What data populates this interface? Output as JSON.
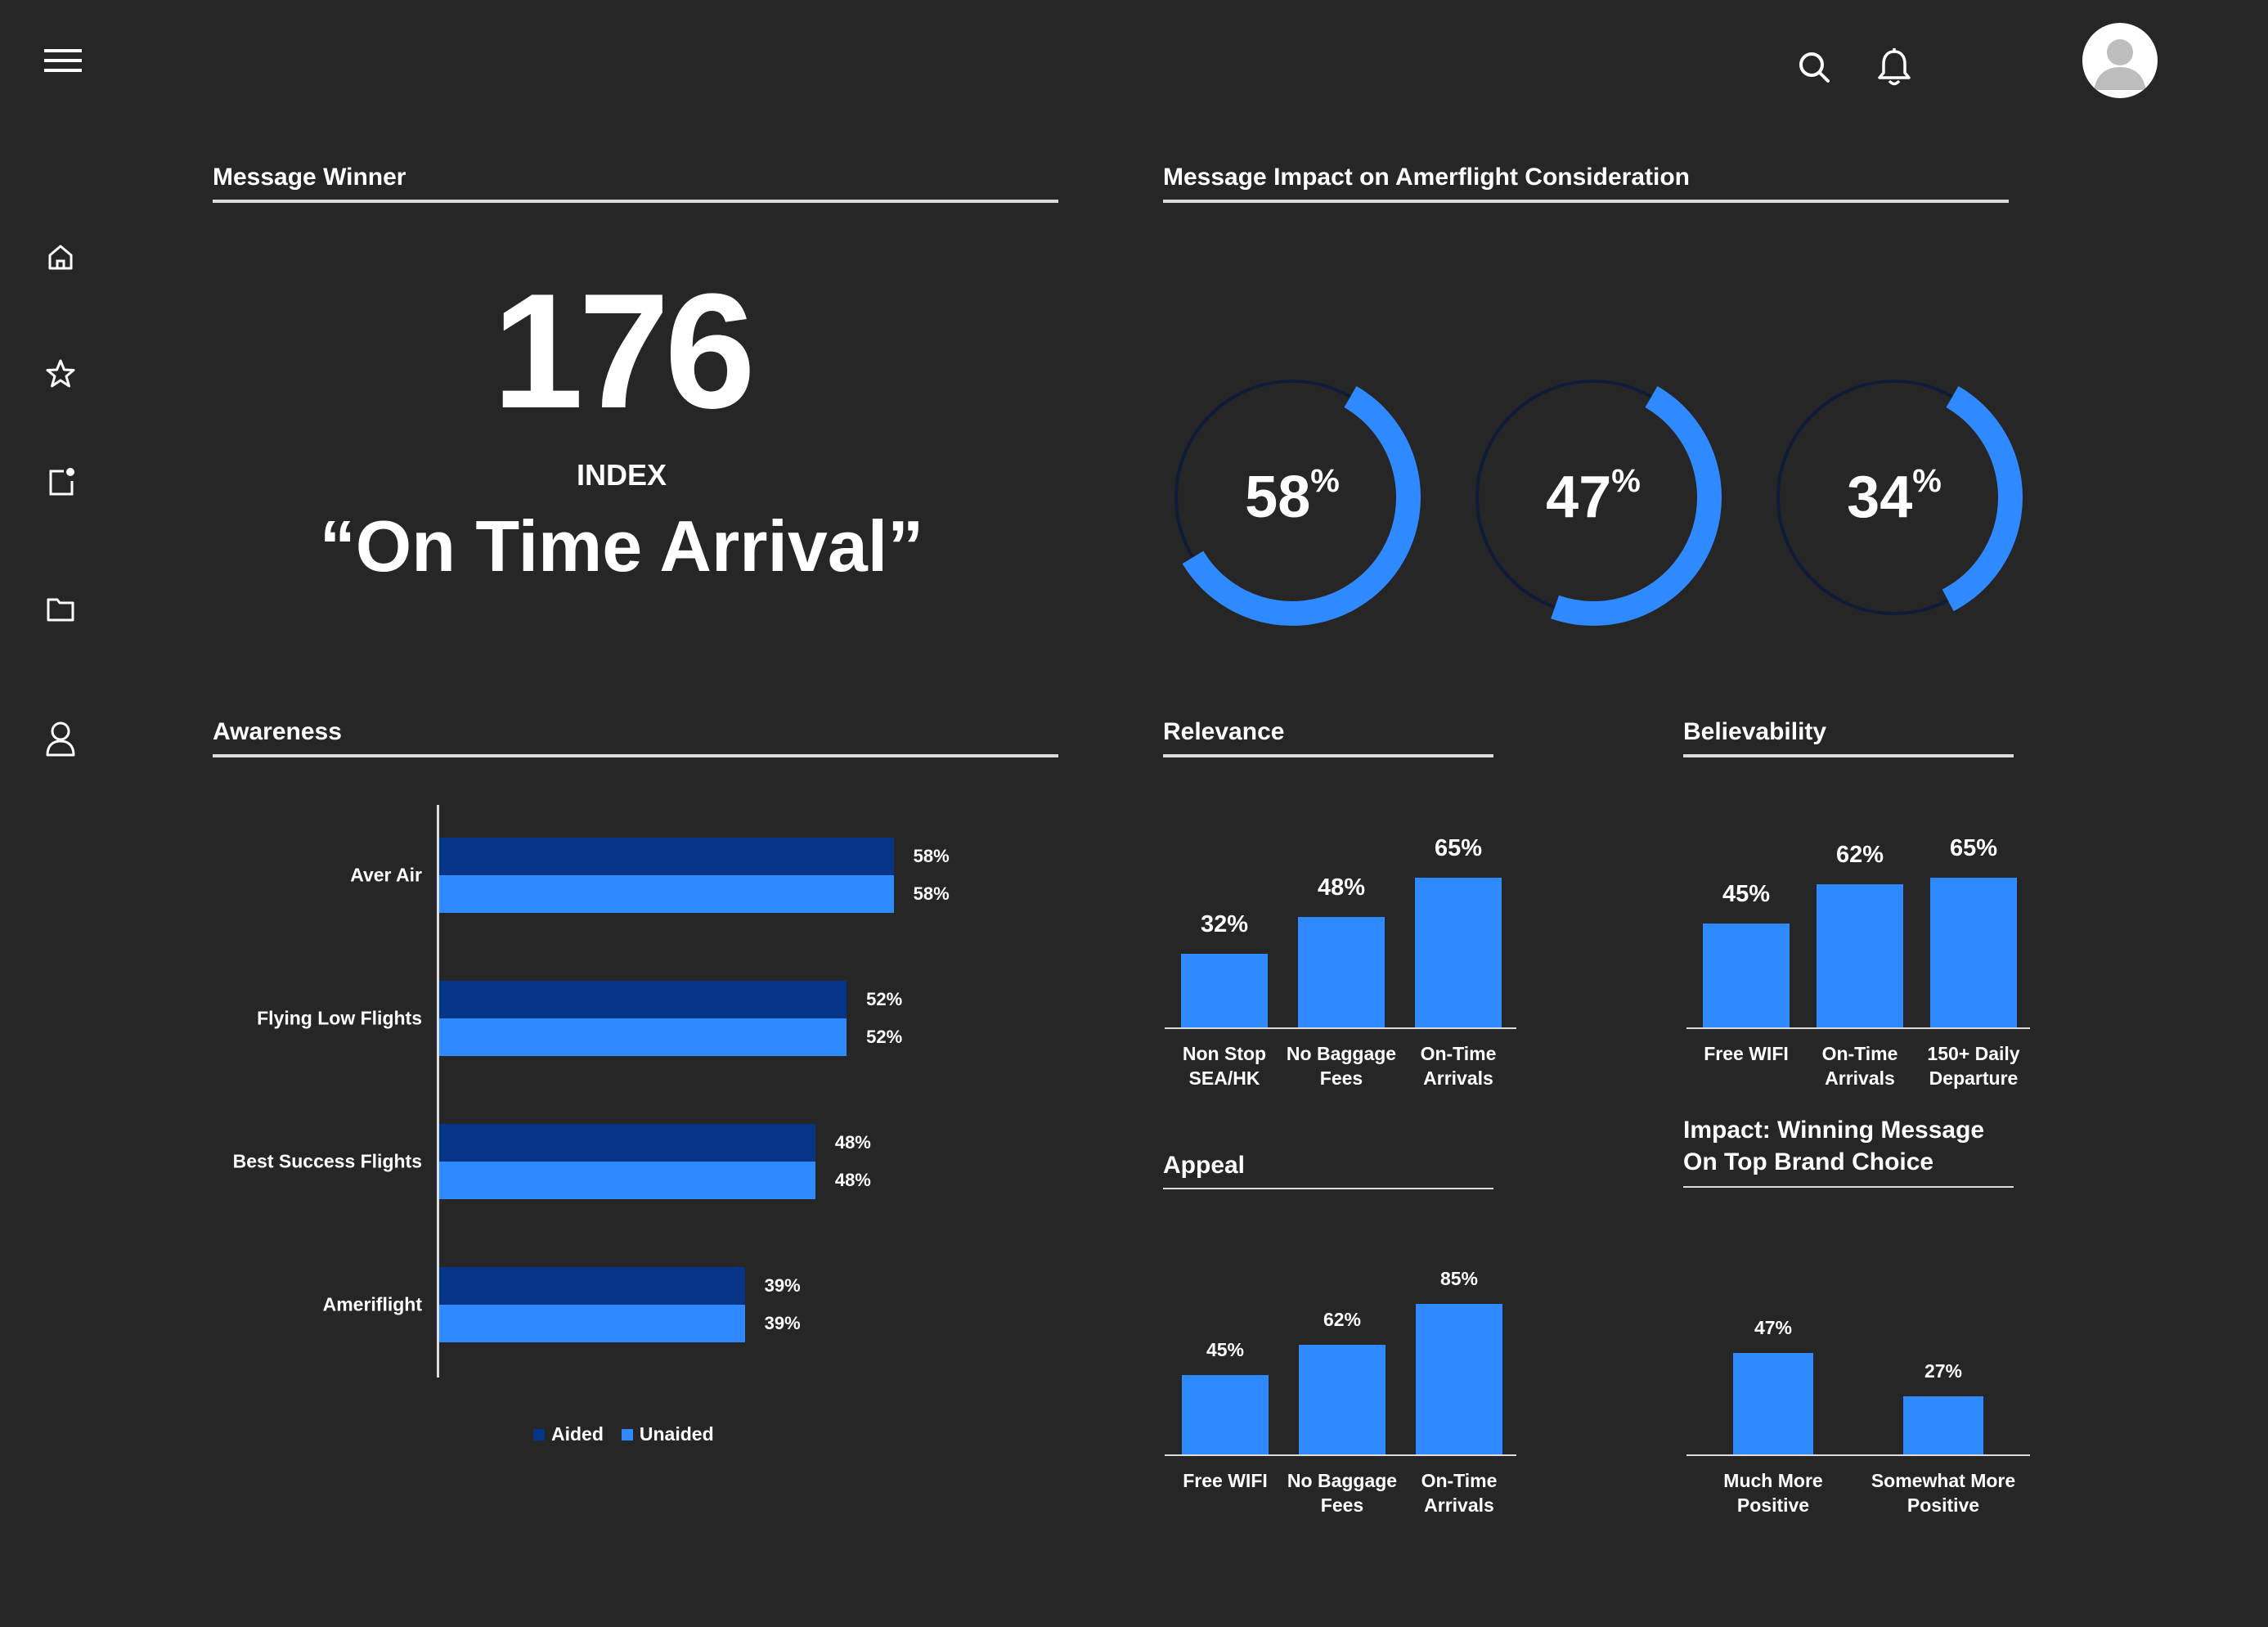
{
  "colors": {
    "background": "#262626",
    "accent": "#2f89ff",
    "accent_dark": "#063486",
    "text": "#ffffff",
    "ring_track": "#0e1c3a"
  },
  "topbar": {
    "menu_icon": "hamburger-menu-icon",
    "search_icon": "search-icon",
    "notification_icon": "bell-icon",
    "avatar_icon": "user-avatar-icon"
  },
  "sidebar": {
    "items": [
      {
        "icon": "home-icon"
      },
      {
        "icon": "star-icon"
      },
      {
        "icon": "notification-square-icon"
      },
      {
        "icon": "folder-icon"
      },
      {
        "icon": "user-icon"
      }
    ]
  },
  "message_winner": {
    "title": "Message Winner",
    "index_value": "176",
    "index_label": "INDEX",
    "message": "“On Time Arrival”"
  },
  "impact": {
    "title": "Message Impact on Amerflight Consideration",
    "donuts": [
      {
        "value": "58",
        "unit": "%",
        "percent": 58
      },
      {
        "value": "47",
        "unit": "%",
        "percent": 47
      },
      {
        "value": "34",
        "unit": "%",
        "percent": 34
      }
    ]
  },
  "awareness": {
    "title": "Awareness",
    "legend": {
      "aided": "Aided",
      "unaided": "Unaided"
    },
    "chart_data": {
      "type": "bar",
      "orientation": "horizontal",
      "categories": [
        "Aver Air",
        "Flying Low Flights",
        "Best Success Flights",
        "Ameriflight"
      ],
      "series": [
        {
          "name": "Aided",
          "values": [
            58,
            52,
            48,
            39
          ],
          "labels": [
            "58%",
            "52%",
            "48%",
            "39%"
          ]
        },
        {
          "name": "Unaided",
          "values": [
            58,
            52,
            48,
            39
          ],
          "labels": [
            "58%",
            "52%",
            "48%",
            "39%"
          ]
        }
      ]
    }
  },
  "relevance": {
    "title": "Relevance",
    "chart_data": {
      "type": "bar",
      "categories": [
        [
          "Non Stop",
          "SEA/HK"
        ],
        [
          "No Baggage",
          "Fees"
        ],
        [
          "On-Time",
          "Arrivals"
        ]
      ],
      "values": [
        32,
        48,
        65
      ],
      "labels": [
        "32%",
        "48%",
        "65%"
      ]
    }
  },
  "believability": {
    "title": "Believability",
    "chart_data": {
      "type": "bar",
      "categories": [
        [
          "Free WIFI"
        ],
        [
          "On-Time",
          "Arrivals"
        ],
        [
          "150+ Daily",
          "Departure"
        ]
      ],
      "values": [
        45,
        62,
        65
      ],
      "labels": [
        "45%",
        "62%",
        "65%"
      ]
    }
  },
  "appeal": {
    "title": "Appeal",
    "chart_data": {
      "type": "bar",
      "categories": [
        [
          "Free WIFI"
        ],
        [
          "No Baggage",
          "Fees"
        ],
        [
          "On-Time",
          "Arrivals"
        ]
      ],
      "values": [
        45,
        62,
        85
      ],
      "labels": [
        "45%",
        "62%",
        "85%"
      ]
    }
  },
  "top_brand": {
    "title_line1": "Impact: Winning Message",
    "title_line2": "On Top Brand Choice",
    "chart_data": {
      "type": "bar",
      "categories": [
        [
          "Much More",
          "Positive"
        ],
        [
          "Somewhat More",
          "Positive"
        ]
      ],
      "values": [
        47,
        27
      ],
      "labels": [
        "47%",
        "27%"
      ]
    }
  }
}
